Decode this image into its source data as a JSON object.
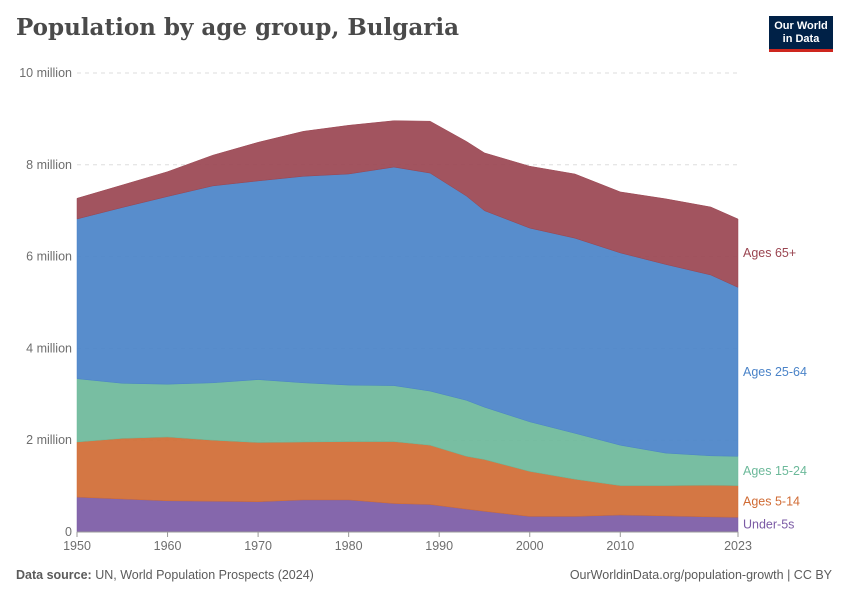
{
  "header": {
    "title": "Population by age group, Bulgaria",
    "logo_line1": "Our World",
    "logo_line2": "in Data"
  },
  "footer": {
    "source_label": "Data source:",
    "source_text": " UN, World Population Prospects (2024)",
    "link_text": "OurWorldinData.org/population-growth | CC BY"
  },
  "chart_data": {
    "type": "area",
    "stacked": true,
    "title": "Population by age group, Bulgaria",
    "xlabel": "",
    "ylabel": "",
    "xlim": [
      1950,
      2023
    ],
    "ylim": [
      0,
      10000000
    ],
    "y_ticks": [
      {
        "value": 0,
        "label": "0"
      },
      {
        "value": 2000000,
        "label": "2 million"
      },
      {
        "value": 4000000,
        "label": "4 million"
      },
      {
        "value": 6000000,
        "label": "6 million"
      },
      {
        "value": 8000000,
        "label": "8 million"
      },
      {
        "value": 10000000,
        "label": "10 million"
      }
    ],
    "x_ticks": [
      {
        "value": 1950,
        "label": "1950"
      },
      {
        "value": 1960,
        "label": "1960"
      },
      {
        "value": 1970,
        "label": "1970"
      },
      {
        "value": 1980,
        "label": "1980"
      },
      {
        "value": 1990,
        "label": "1990"
      },
      {
        "value": 2000,
        "label": "2000"
      },
      {
        "value": 2010,
        "label": "2010"
      },
      {
        "value": 2023,
        "label": "2023"
      }
    ],
    "x": [
      1950,
      1955,
      1960,
      1965,
      1970,
      1975,
      1980,
      1985,
      1989,
      1993,
      1995,
      2000,
      2005,
      2010,
      2015,
      2020,
      2023
    ],
    "series": [
      {
        "name": "Under-5s",
        "color": "#7b5aa5",
        "values": [
          760000,
          720000,
          680000,
          670000,
          660000,
          700000,
          700000,
          620000,
          600000,
          500000,
          450000,
          340000,
          340000,
          370000,
          350000,
          330000,
          320000
        ]
      },
      {
        "name": "Ages 5-14",
        "color": "#d06b34",
        "values": [
          1200000,
          1320000,
          1390000,
          1330000,
          1290000,
          1260000,
          1270000,
          1350000,
          1290000,
          1150000,
          1130000,
          980000,
          810000,
          640000,
          660000,
          690000,
          690000
        ]
      },
      {
        "name": "Ages 15-24",
        "color": "#6cb99a",
        "values": [
          1380000,
          1200000,
          1150000,
          1250000,
          1370000,
          1290000,
          1230000,
          1220000,
          1180000,
          1220000,
          1140000,
          1080000,
          1000000,
          880000,
          710000,
          640000,
          640000
        ]
      },
      {
        "name": "Ages 25-64",
        "color": "#4a83c8",
        "values": [
          3480000,
          3830000,
          4090000,
          4290000,
          4330000,
          4500000,
          4600000,
          4760000,
          4750000,
          4450000,
          4280000,
          4220000,
          4250000,
          4190000,
          4110000,
          3940000,
          3680000
        ]
      },
      {
        "name": "Ages 65+",
        "color": "#9a4551",
        "values": [
          450000,
          490000,
          540000,
          670000,
          840000,
          980000,
          1060000,
          1010000,
          1130000,
          1190000,
          1260000,
          1350000,
          1400000,
          1330000,
          1430000,
          1480000,
          1490000
        ]
      }
    ]
  }
}
